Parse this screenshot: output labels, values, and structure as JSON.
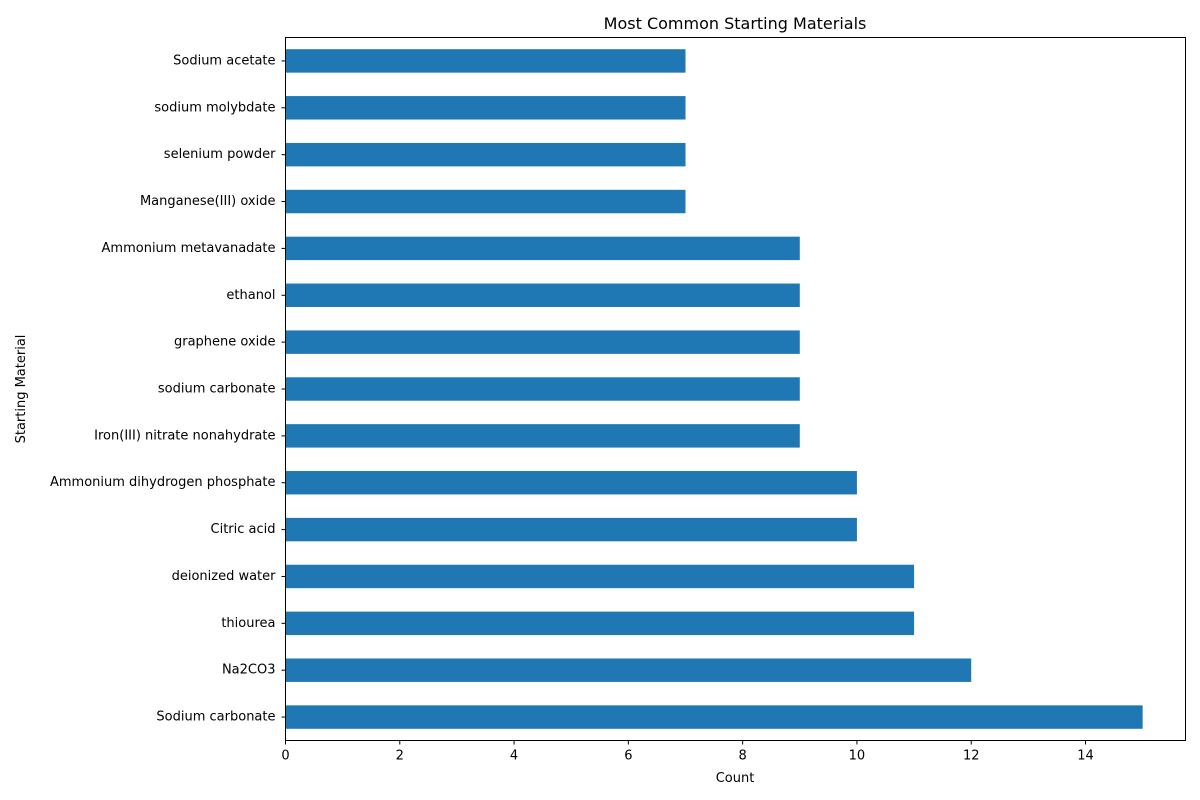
{
  "chart_data": {
    "type": "bar",
    "orientation": "horizontal",
    "title": "Most Common Starting Materials",
    "xlabel": "Count",
    "ylabel": "Starting Material",
    "xlim": [
      0,
      15.75
    ],
    "xticks": [
      "0",
      "2",
      "4",
      "6",
      "8",
      "10",
      "12",
      "14"
    ],
    "grid": false,
    "bar_color": "#1f77b4",
    "categories": [
      "Sodium carbonate",
      "Na2CO3",
      "thiourea",
      "deionized water",
      "Citric acid",
      "Ammonium dihydrogen phosphate",
      "Iron(III) nitrate nonahydrate",
      "sodium carbonate",
      "graphene oxide",
      "ethanol",
      "Ammonium metavanadate",
      "Manganese(III) oxide",
      "selenium powder",
      "sodium molybdate",
      "Sodium acetate"
    ],
    "values": [
      15,
      12,
      11,
      11,
      10,
      10,
      9,
      9,
      9,
      9,
      9,
      7,
      7,
      7,
      7
    ]
  }
}
